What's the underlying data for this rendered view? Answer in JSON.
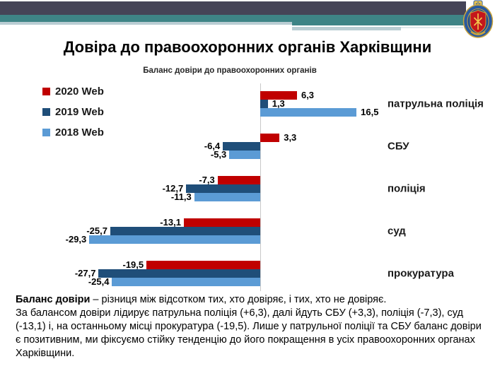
{
  "title": "Довіра до правоохоронних органів Харківщини",
  "chart_data": {
    "type": "bar",
    "orientation": "horizontal",
    "title": "Баланс довіри до правоохоронних органів",
    "categories": [
      "патрульна поліція",
      "СБУ",
      "поліція",
      "суд",
      "прокуратура"
    ],
    "series": [
      {
        "name": "2020 Web",
        "color": "#c00000",
        "values": [
          6.3,
          3.3,
          -7.3,
          -13.1,
          -19.5
        ]
      },
      {
        "name": "2019 Web",
        "color": "#1f4e79",
        "values": [
          1.3,
          -6.4,
          -12.7,
          -25.7,
          -27.7
        ]
      },
      {
        "name": "2018 Web",
        "color": "#5b9bd5",
        "values": [
          16.5,
          -5.3,
          -11.3,
          -29.3,
          -25.4
        ]
      }
    ],
    "xlim": [
      -35,
      20
    ],
    "grid": false,
    "legend_position": "top-left",
    "value_label_decimal": "comma"
  },
  "footnote": {
    "bold_lead": "Баланс довіри",
    "line1_rest": " – різниця між відсотком тих, хто довіряє, і тих, хто не довіряє.",
    "paragraph": "За балансом довіри лідирує патрульна поліція (+6,3), далі йдуть СБУ (+3,3), поліція (-7,3), суд (-13,1) і, на останньому місці прокуратура (-19,5). Лише у патрульної поліції та СБУ баланс довіри є позитивним, ми фіксуємо стійку тенденцію до його покращення в усіх правоохоронних органах Харківщини."
  }
}
